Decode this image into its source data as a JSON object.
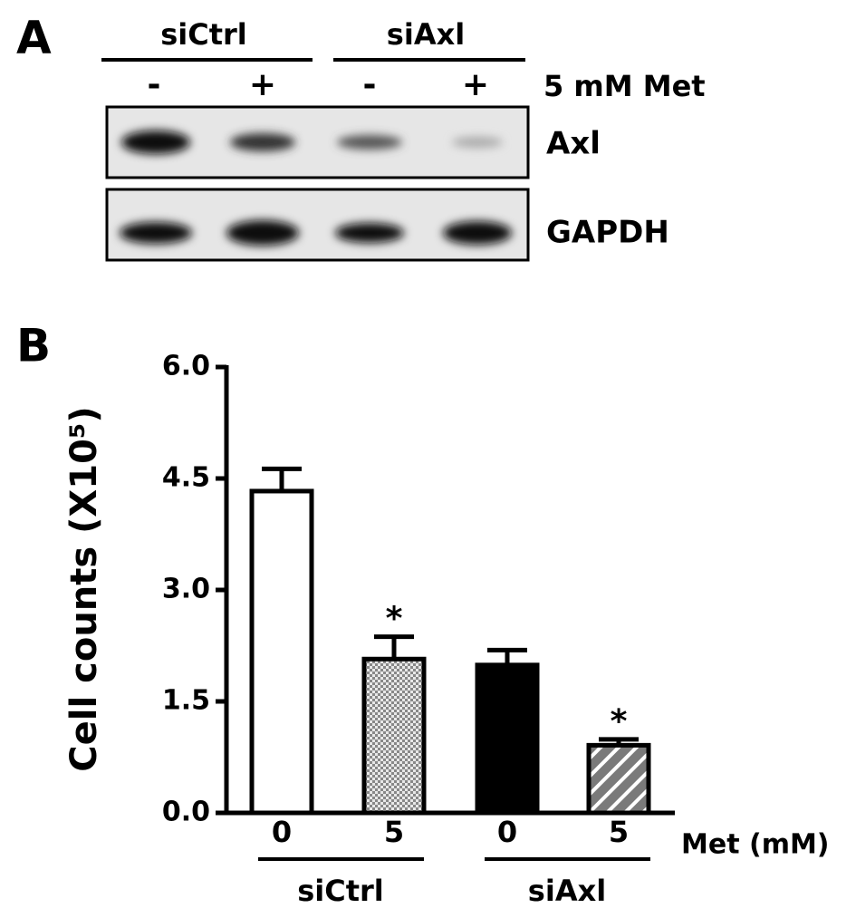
{
  "panel_a": {
    "label": "A",
    "groups": [
      "siCtrl",
      "siAxl"
    ],
    "treatment_signs": [
      "-",
      "+",
      "-",
      "+"
    ],
    "treatment_label": "5 mM Met",
    "rows": [
      "Axl",
      "GAPDH"
    ]
  },
  "chart_data": {
    "type": "bar",
    "panel_label": "B",
    "y_label": "Cell counts (X10⁵)",
    "x_label": "Met (mM)",
    "categories": [
      "0",
      "5",
      "0",
      "5"
    ],
    "groups": [
      "siCtrl",
      "siAxl"
    ],
    "values": [
      4.33,
      2.07,
      1.99,
      0.91
    ],
    "errors": [
      0.3,
      0.3,
      0.2,
      0.08
    ],
    "value_annotations": [
      null,
      "*",
      null,
      "*"
    ],
    "colors": [
      "#ffffff",
      "#c8c8c8",
      "#000000",
      "#7a7a7a"
    ],
    "fills": [
      "solid",
      "checker",
      "solid",
      "hatch"
    ],
    "ylim": [
      0,
      6
    ],
    "yticks": [
      {
        "value": 0,
        "label": "0.0"
      },
      {
        "value": 1.5,
        "label": "1.5"
      },
      {
        "value": 3,
        "label": "3.0"
      },
      {
        "value": 4.5,
        "label": "4.5"
      },
      {
        "value": 6,
        "label": "6.0"
      }
    ]
  }
}
